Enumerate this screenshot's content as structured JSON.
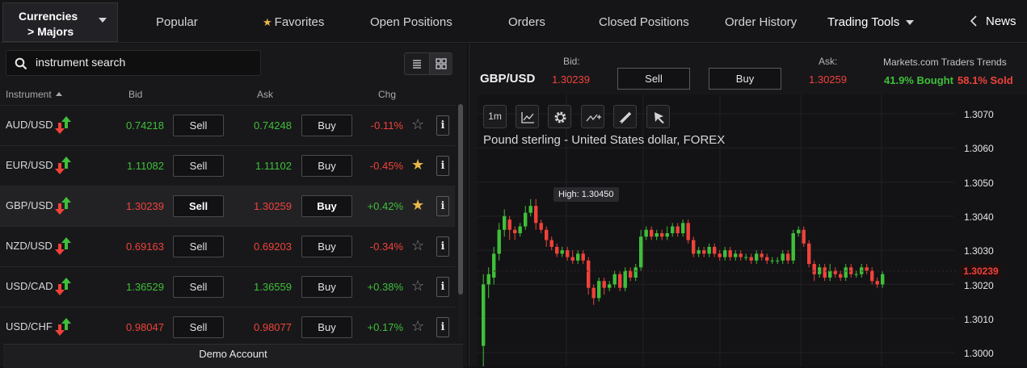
{
  "topbar": {
    "category_line1": "Currencies",
    "category_line2": "> Majors",
    "tabs": [
      {
        "label": "Popular"
      },
      {
        "label": "Favorites"
      },
      {
        "label": "Open Positions"
      },
      {
        "label": "Orders"
      },
      {
        "label": "Closed Positions"
      },
      {
        "label": "Order History"
      },
      {
        "label": "Trading Tools"
      },
      {
        "label": "News"
      }
    ]
  },
  "search": {
    "placeholder": "instrument search"
  },
  "table": {
    "headers": {
      "instrument": "Instrument",
      "bid": "Bid",
      "ask": "Ask",
      "chg": "Chg"
    },
    "rows": [
      {
        "symbol": "AUD/USD",
        "bid": "0.74218",
        "bid_color": "green",
        "sell": "Sell",
        "ask": "0.74248",
        "ask_color": "green",
        "buy": "Buy",
        "chg": "-0.11%",
        "chg_color": "red",
        "favorite": false,
        "info": "i"
      },
      {
        "symbol": "EUR/USD",
        "bid": "1.11082",
        "bid_color": "green",
        "sell": "Sell",
        "ask": "1.11102",
        "ask_color": "green",
        "buy": "Buy",
        "chg": "-0.45%",
        "chg_color": "red",
        "favorite": true,
        "info": "i"
      },
      {
        "symbol": "GBP/USD",
        "bid": "1.30239",
        "bid_color": "red",
        "sell": "Sell",
        "ask": "1.30259",
        "ask_color": "red",
        "buy": "Buy",
        "chg": "+0.42%",
        "chg_color": "green",
        "favorite": true,
        "info": "i",
        "selected": true
      },
      {
        "symbol": "NZD/USD",
        "bid": "0.69163",
        "bid_color": "red",
        "sell": "Sell",
        "ask": "0.69203",
        "ask_color": "red",
        "buy": "Buy",
        "chg": "-0.34%",
        "chg_color": "red",
        "favorite": false,
        "info": "i"
      },
      {
        "symbol": "USD/CAD",
        "bid": "1.36529",
        "bid_color": "green",
        "sell": "Sell",
        "ask": "1.36559",
        "ask_color": "green",
        "buy": "Buy",
        "chg": "+0.38%",
        "chg_color": "green",
        "favorite": false,
        "info": "i"
      },
      {
        "symbol": "USD/CHF",
        "bid": "0.98047",
        "bid_color": "red",
        "sell": "Sell",
        "ask": "0.98077",
        "ask_color": "red",
        "buy": "Buy",
        "chg": "+0.17%",
        "chg_color": "green",
        "favorite": false,
        "info": "i"
      }
    ]
  },
  "footer": {
    "account": "Demo Account"
  },
  "detail": {
    "pair": "GBP/USD",
    "bid_label": "Bid:",
    "bid": "1.30239",
    "sell": "Sell",
    "buy": "Buy",
    "ask_label": "Ask:",
    "ask": "1.30259",
    "trends_title": "Markets.com Traders Trends",
    "bought": "41.9% Bought",
    "sold": "58.1% Sold"
  },
  "chart": {
    "timeframe": "1m",
    "title": "Pound sterling - United States dollar, FOREX",
    "high_label": "High: 1.30450",
    "current_price": "1.30239",
    "y_ticks": [
      "1.3070",
      "1.3060",
      "1.3050",
      "1.3040",
      "1.3030",
      "1.3020",
      "1.3010",
      "1.3000"
    ],
    "colors": {
      "up": "#3fbf3a",
      "down": "#f0423a"
    }
  },
  "chart_data": {
    "type": "candlestick",
    "title": "Pound sterling - United States dollar, FOREX",
    "ylim": [
      1.2995,
      1.3072
    ],
    "grid": true,
    "candles": [
      {
        "o": 1.3002,
        "c": 1.302,
        "h": 1.3023,
        "l": 1.2995
      },
      {
        "o": 1.302,
        "c": 1.3023,
        "h": 1.3025,
        "l": 1.3016
      },
      {
        "o": 1.3022,
        "c": 1.3029,
        "h": 1.3031,
        "l": 1.302
      },
      {
        "o": 1.3029,
        "c": 1.3036,
        "h": 1.3038,
        "l": 1.3027
      },
      {
        "o": 1.3036,
        "c": 1.304,
        "h": 1.3042,
        "l": 1.3034
      },
      {
        "o": 1.3039,
        "c": 1.3036,
        "h": 1.304,
        "l": 1.3033
      },
      {
        "o": 1.3036,
        "c": 1.3035,
        "h": 1.3037,
        "l": 1.3033
      },
      {
        "o": 1.3035,
        "c": 1.3037,
        "h": 1.3038,
        "l": 1.3034
      },
      {
        "o": 1.3037,
        "c": 1.3041,
        "h": 1.3043,
        "l": 1.3036
      },
      {
        "o": 1.3041,
        "c": 1.3043,
        "h": 1.3045,
        "l": 1.304
      },
      {
        "o": 1.3043,
        "c": 1.3038,
        "h": 1.3045,
        "l": 1.3036
      },
      {
        "o": 1.3038,
        "c": 1.3036,
        "h": 1.3039,
        "l": 1.3035
      },
      {
        "o": 1.3036,
        "c": 1.3033,
        "h": 1.3037,
        "l": 1.3031
      },
      {
        "o": 1.3033,
        "c": 1.3031,
        "h": 1.3034,
        "l": 1.303
      },
      {
        "o": 1.3031,
        "c": 1.3029,
        "h": 1.3032,
        "l": 1.3028
      },
      {
        "o": 1.3029,
        "c": 1.303,
        "h": 1.3031,
        "l": 1.3028
      },
      {
        "o": 1.303,
        "c": 1.3028,
        "h": 1.3031,
        "l": 1.3027
      },
      {
        "o": 1.3028,
        "c": 1.3027,
        "h": 1.303,
        "l": 1.3026
      },
      {
        "o": 1.3027,
        "c": 1.3029,
        "h": 1.303,
        "l": 1.3026
      },
      {
        "o": 1.3029,
        "c": 1.3027,
        "h": 1.303,
        "l": 1.3026
      },
      {
        "o": 1.3027,
        "c": 1.3019,
        "h": 1.3028,
        "l": 1.3017
      },
      {
        "o": 1.3019,
        "c": 1.3016,
        "h": 1.302,
        "l": 1.3014
      },
      {
        "o": 1.3016,
        "c": 1.3021,
        "h": 1.3022,
        "l": 1.3015
      },
      {
        "o": 1.3021,
        "c": 1.3019,
        "h": 1.3022,
        "l": 1.3017
      },
      {
        "o": 1.3019,
        "c": 1.302,
        "h": 1.3021,
        "l": 1.3018
      },
      {
        "o": 1.302,
        "c": 1.3023,
        "h": 1.3024,
        "l": 1.3019
      },
      {
        "o": 1.3023,
        "c": 1.3019,
        "h": 1.3024,
        "l": 1.3018
      },
      {
        "o": 1.3019,
        "c": 1.3024,
        "h": 1.3025,
        "l": 1.3018
      },
      {
        "o": 1.3024,
        "c": 1.3022,
        "h": 1.3025,
        "l": 1.3021
      },
      {
        "o": 1.3022,
        "c": 1.3025,
        "h": 1.3026,
        "l": 1.3021
      },
      {
        "o": 1.3025,
        "c": 1.3034,
        "h": 1.3036,
        "l": 1.3024
      },
      {
        "o": 1.3034,
        "c": 1.3036,
        "h": 1.3037,
        "l": 1.3033
      },
      {
        "o": 1.3036,
        "c": 1.3034,
        "h": 1.3037,
        "l": 1.3033
      },
      {
        "o": 1.3034,
        "c": 1.3035,
        "h": 1.3036,
        "l": 1.3033
      },
      {
        "o": 1.3035,
        "c": 1.3034,
        "h": 1.3036,
        "l": 1.3033
      },
      {
        "o": 1.3034,
        "c": 1.3035,
        "h": 1.3037,
        "l": 1.3033
      },
      {
        "o": 1.3035,
        "c": 1.3037,
        "h": 1.3038,
        "l": 1.3034
      },
      {
        "o": 1.3037,
        "c": 1.3035,
        "h": 1.3038,
        "l": 1.3034
      },
      {
        "o": 1.3035,
        "c": 1.3038,
        "h": 1.3039,
        "l": 1.3034
      },
      {
        "o": 1.3038,
        "c": 1.3033,
        "h": 1.3039,
        "l": 1.3032
      },
      {
        "o": 1.3033,
        "c": 1.3029,
        "h": 1.3034,
        "l": 1.3028
      },
      {
        "o": 1.3029,
        "c": 1.303,
        "h": 1.3031,
        "l": 1.3028
      },
      {
        "o": 1.303,
        "c": 1.3029,
        "h": 1.3031,
        "l": 1.3028
      },
      {
        "o": 1.3029,
        "c": 1.3031,
        "h": 1.3032,
        "l": 1.3028
      },
      {
        "o": 1.3031,
        "c": 1.3029,
        "h": 1.3032,
        "l": 1.3028
      },
      {
        "o": 1.3029,
        "c": 1.3028,
        "h": 1.303,
        "l": 1.3027
      },
      {
        "o": 1.3028,
        "c": 1.303,
        "h": 1.3031,
        "l": 1.3027
      },
      {
        "o": 1.303,
        "c": 1.3028,
        "h": 1.3031,
        "l": 1.3027
      },
      {
        "o": 1.3028,
        "c": 1.3029,
        "h": 1.303,
        "l": 1.3027
      },
      {
        "o": 1.3029,
        "c": 1.3028,
        "h": 1.303,
        "l": 1.3027
      },
      {
        "o": 1.3028,
        "c": 1.3028,
        "h": 1.3029,
        "l": 1.3027
      },
      {
        "o": 1.3028,
        "c": 1.3027,
        "h": 1.3029,
        "l": 1.3026
      },
      {
        "o": 1.3027,
        "c": 1.3029,
        "h": 1.303,
        "l": 1.3026
      },
      {
        "o": 1.3029,
        "c": 1.3028,
        "h": 1.303,
        "l": 1.3027
      },
      {
        "o": 1.3028,
        "c": 1.3027,
        "h": 1.3029,
        "l": 1.3026
      },
      {
        "o": 1.3027,
        "c": 1.3027,
        "h": 1.3028,
        "l": 1.3026
      },
      {
        "o": 1.3027,
        "c": 1.3027,
        "h": 1.3028,
        "l": 1.3026
      },
      {
        "o": 1.3027,
        "c": 1.3029,
        "h": 1.303,
        "l": 1.3026
      },
      {
        "o": 1.3029,
        "c": 1.3027,
        "h": 1.303,
        "l": 1.3026
      },
      {
        "o": 1.3027,
        "c": 1.3035,
        "h": 1.3036,
        "l": 1.3026
      },
      {
        "o": 1.3035,
        "c": 1.3036,
        "h": 1.3037,
        "l": 1.3034
      },
      {
        "o": 1.3036,
        "c": 1.3032,
        "h": 1.3037,
        "l": 1.3031
      },
      {
        "o": 1.3032,
        "c": 1.3026,
        "h": 1.3033,
        "l": 1.3025
      },
      {
        "o": 1.3026,
        "c": 1.3023,
        "h": 1.3027,
        "l": 1.3021
      },
      {
        "o": 1.3023,
        "c": 1.3025,
        "h": 1.3026,
        "l": 1.3022
      },
      {
        "o": 1.3025,
        "c": 1.3022,
        "h": 1.3026,
        "l": 1.3021
      },
      {
        "o": 1.3022,
        "c": 1.3024,
        "h": 1.3026,
        "l": 1.3021
      },
      {
        "o": 1.3024,
        "c": 1.3023,
        "h": 1.3025,
        "l": 1.3022
      },
      {
        "o": 1.3023,
        "c": 1.3022,
        "h": 1.3024,
        "l": 1.3021
      },
      {
        "o": 1.3022,
        "c": 1.3025,
        "h": 1.3026,
        "l": 1.3021
      },
      {
        "o": 1.3025,
        "c": 1.3023,
        "h": 1.3026,
        "l": 1.3022
      },
      {
        "o": 1.3023,
        "c": 1.3023,
        "h": 1.3024,
        "l": 1.3022
      },
      {
        "o": 1.3023,
        "c": 1.3025,
        "h": 1.3026,
        "l": 1.3022
      },
      {
        "o": 1.3025,
        "c": 1.3024,
        "h": 1.3026,
        "l": 1.3023
      },
      {
        "o": 1.3024,
        "c": 1.3021,
        "h": 1.3025,
        "l": 1.302
      },
      {
        "o": 1.3021,
        "c": 1.302,
        "h": 1.3022,
        "l": 1.3019
      },
      {
        "o": 1.302,
        "c": 1.3023,
        "h": 1.3024,
        "l": 1.3019
      }
    ]
  }
}
